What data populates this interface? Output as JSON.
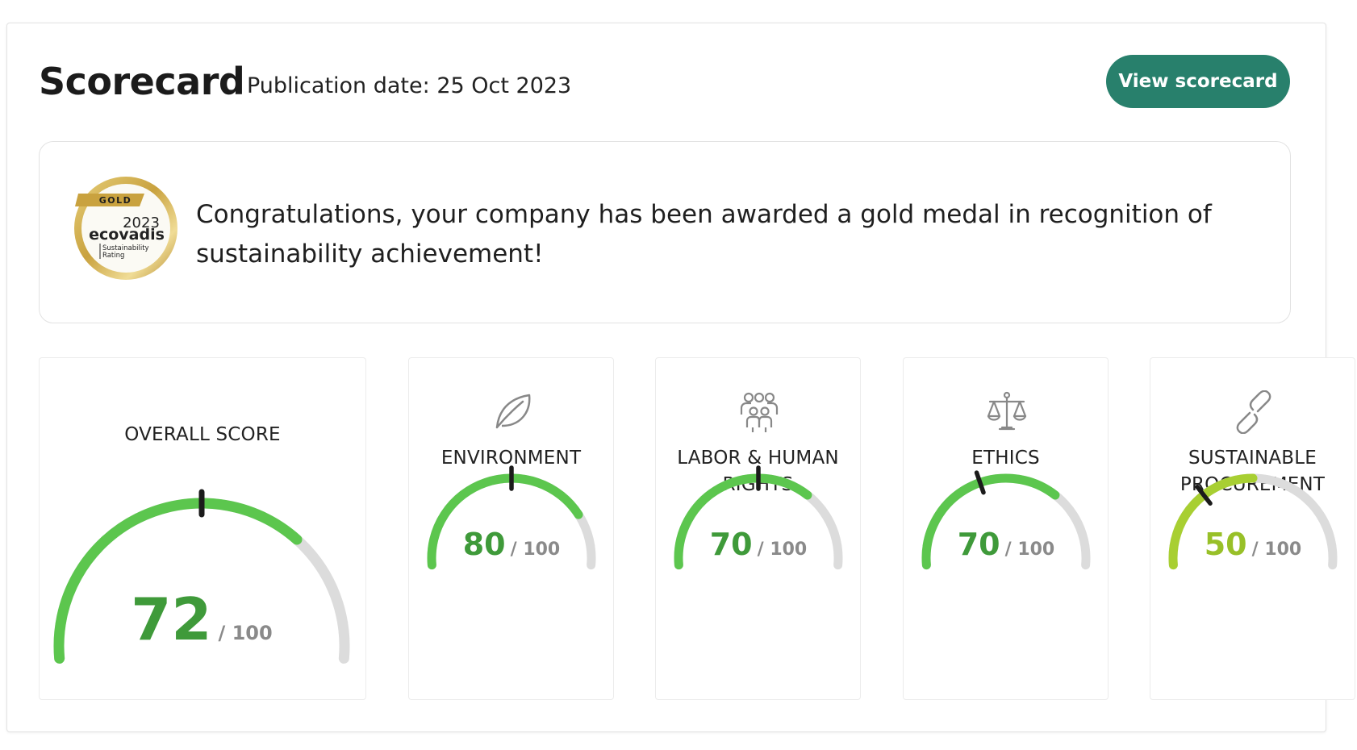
{
  "header": {
    "title": "Scorecard",
    "publication_date": "Publication date: 25 Oct 2023",
    "view_button_label": "View scorecard"
  },
  "banner": {
    "message": "Congratulations, your company has been awarded a gold medal in recognition of sustainability achievement!",
    "medal": {
      "ribbon": "GOLD",
      "year": "2023",
      "brand": "ecovadis",
      "caption_line1": "Sustainability",
      "caption_line2": "Rating"
    }
  },
  "scores": [
    {
      "id": "overall",
      "label_lines": [
        "OVERALL SCORE"
      ],
      "value": 72,
      "display": "72",
      "denominator": "/ 100",
      "benchmark": 50,
      "color": "#5cc64e",
      "value_color": "#3f9a3a",
      "icon": ""
    },
    {
      "id": "environment",
      "label_lines": [
        "ENVIRONMENT"
      ],
      "value": 80,
      "display": "80",
      "denominator": "/ 100",
      "benchmark": 50,
      "color": "#5cc64e",
      "value_color": "#3f9a3a",
      "icon": "leaf-icon"
    },
    {
      "id": "labor",
      "label_lines": [
        "LABOR & HUMAN",
        "RIGHTS"
      ],
      "value": 70,
      "display": "70",
      "denominator": "/ 100",
      "benchmark": 50,
      "color": "#5cc64e",
      "value_color": "#3f9a3a",
      "icon": "people-icon"
    },
    {
      "id": "ethics",
      "label_lines": [
        "ETHICS"
      ],
      "value": 70,
      "display": "70",
      "denominator": "/ 100",
      "benchmark": 40,
      "color": "#5cc64e",
      "value_color": "#3f9a3a",
      "icon": "scales-icon"
    },
    {
      "id": "procurement",
      "label_lines": [
        "SUSTAINABLE",
        "PROCUREMENT"
      ],
      "value": 50,
      "display": "50",
      "denominator": "/ 100",
      "benchmark": 30,
      "color": "#a8cf32",
      "value_color": "#98c028",
      "icon": "chain-link-icon"
    }
  ],
  "colors": {
    "track": "#dcdcdc",
    "accent": "#28806c",
    "needle": "#1b1b1b"
  }
}
